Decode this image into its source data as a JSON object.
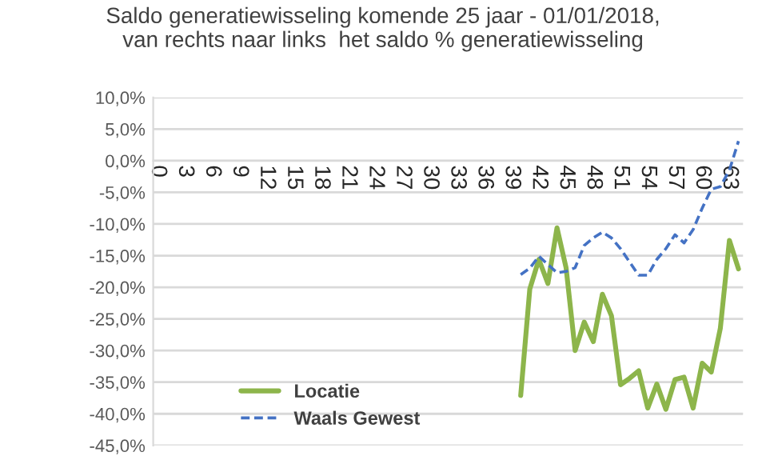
{
  "chart_data": {
    "type": "line",
    "title": "Saldo generatiewisseling komende 25 jaar - 01/01/2018,\nvan rechts naar links  het saldo % generatiewisseling",
    "categories": [
      "0",
      null,
      null,
      "3",
      null,
      null,
      "6",
      null,
      null,
      "9",
      null,
      null,
      "12",
      null,
      null,
      "15",
      null,
      null,
      "18",
      null,
      null,
      "21",
      null,
      null,
      "24",
      null,
      null,
      "27",
      null,
      null,
      "30",
      null,
      null,
      "33",
      null,
      null,
      "36",
      null,
      null,
      "39",
      null,
      null,
      "42",
      null,
      null,
      "45",
      null,
      null,
      "48",
      null,
      null,
      "51",
      null,
      null,
      "54",
      null,
      null,
      "57",
      null,
      null,
      "60",
      null,
      null,
      "63",
      null
    ],
    "series": [
      {
        "name": "Locatie",
        "color": "#8db54b",
        "line_style": "solid",
        "values": [
          null,
          null,
          null,
          null,
          null,
          null,
          null,
          null,
          null,
          null,
          null,
          null,
          null,
          null,
          null,
          null,
          null,
          null,
          null,
          null,
          null,
          null,
          null,
          null,
          null,
          null,
          null,
          null,
          null,
          null,
          null,
          null,
          null,
          null,
          null,
          null,
          null,
          null,
          null,
          null,
          -37.1,
          -20.3,
          -15.6,
          -19.4,
          -10.6,
          -16.9,
          -30.0,
          -25.5,
          -28.6,
          -21.1,
          -24.5,
          -35.4,
          -34.4,
          -33.2,
          -39.1,
          -35.3,
          -39.3,
          -34.6,
          -34.2,
          -39.1,
          -32.0,
          -33.4,
          -26.5,
          -12.6,
          -17.1
        ]
      },
      {
        "name": "Waals Gewest",
        "color": "#4472c4",
        "line_style": "dashed",
        "values": [
          null,
          null,
          null,
          null,
          null,
          null,
          null,
          null,
          null,
          null,
          null,
          null,
          null,
          null,
          null,
          null,
          null,
          null,
          null,
          null,
          null,
          null,
          null,
          null,
          null,
          null,
          null,
          null,
          null,
          null,
          null,
          null,
          null,
          null,
          null,
          null,
          null,
          null,
          null,
          null,
          -18.0,
          -17.0,
          -15.1,
          -16.4,
          -17.7,
          -17.5,
          -16.9,
          -13.4,
          -12.2,
          -11.3,
          -12.2,
          -13.9,
          -16.0,
          -18.1,
          -18.1,
          -15.6,
          -13.9,
          -11.7,
          -13.0,
          -10.9,
          -7.5,
          -4.5,
          -4.1,
          -1.5,
          3.1
        ]
      }
    ],
    "ylim": [
      -45,
      10
    ],
    "yticks": [
      {
        "value": -45,
        "label": "-45,0%"
      },
      {
        "value": -40,
        "label": "-40,0%"
      },
      {
        "value": -35,
        "label": "-35,0%"
      },
      {
        "value": -30,
        "label": "-30,0%"
      },
      {
        "value": -25,
        "label": "-25,0%"
      },
      {
        "value": -20,
        "label": "-20,0%"
      },
      {
        "value": -15,
        "label": "-15,0%"
      },
      {
        "value": -10,
        "label": "-10,0%"
      },
      {
        "value": -5,
        "label": "-5,0%"
      },
      {
        "value": 0,
        "label": "0,0%"
      },
      {
        "value": 5,
        "label": "5,0%"
      },
      {
        "value": 10,
        "label": "10,0%"
      }
    ],
    "grid": "y",
    "legend": "bottom left",
    "marker": "none"
  }
}
